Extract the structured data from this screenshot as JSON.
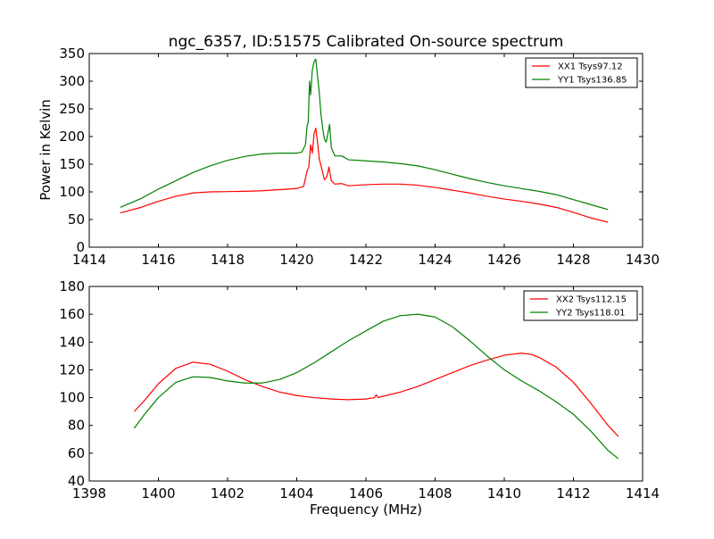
{
  "figure": {
    "title": "ngc_6357, ID:51575 Calibrated On-source spectrum",
    "xlabel": "Frequency (MHz)"
  },
  "chart_data": [
    {
      "type": "line",
      "ylabel": "Power in Kelvin",
      "xlim": [
        1414,
        1430
      ],
      "ylim": [
        0,
        350
      ],
      "xticks": [
        "1414",
        "1416",
        "1418",
        "1420",
        "1422",
        "1424",
        "1426",
        "1428",
        "1430"
      ],
      "yticks": [
        "0",
        "50",
        "100",
        "150",
        "200",
        "250",
        "300",
        "350"
      ],
      "legend_position": "top-right",
      "grid": false,
      "series": [
        {
          "name": "XX1 Tsys97.12",
          "color": "#ff0000",
          "points": [
            [
              1414.9,
              62
            ],
            [
              1415.5,
              72
            ],
            [
              1416,
              83
            ],
            [
              1416.5,
              92
            ],
            [
              1417,
              98
            ],
            [
              1417.5,
              100
            ],
            [
              1418,
              100.5
            ],
            [
              1418.5,
              101
            ],
            [
              1419,
              102
            ],
            [
              1419.5,
              104
            ],
            [
              1420,
              106
            ],
            [
              1420.2,
              110
            ],
            [
              1420.3,
              138
            ],
            [
              1420.35,
              145
            ],
            [
              1420.4,
              185
            ],
            [
              1420.45,
              170
            ],
            [
              1420.5,
              205
            ],
            [
              1420.55,
              215
            ],
            [
              1420.6,
              190
            ],
            [
              1420.65,
              160
            ],
            [
              1420.75,
              135
            ],
            [
              1420.8,
              122
            ],
            [
              1420.85,
              125
            ],
            [
              1420.9,
              135
            ],
            [
              1420.93,
              145
            ],
            [
              1421.0,
              120
            ],
            [
              1421.1,
              114
            ],
            [
              1421.3,
              115
            ],
            [
              1421.5,
              111
            ],
            [
              1422,
              113
            ],
            [
              1422.5,
              114
            ],
            [
              1423,
              114
            ],
            [
              1423.5,
              112
            ],
            [
              1424,
              108
            ],
            [
              1424.5,
              103
            ],
            [
              1425,
              98
            ],
            [
              1425.5,
              92
            ],
            [
              1426,
              87
            ],
            [
              1426.5,
              83
            ],
            [
              1427,
              78
            ],
            [
              1427.5,
              72
            ],
            [
              1428,
              63
            ],
            [
              1428.5,
              53
            ],
            [
              1429,
              45
            ]
          ]
        },
        {
          "name": "YY1 Tsys136.85",
          "color": "#008000",
          "points": [
            [
              1414.9,
              72
            ],
            [
              1415.5,
              88
            ],
            [
              1416,
              105
            ],
            [
              1416.5,
              120
            ],
            [
              1417,
              135
            ],
            [
              1417.5,
              147
            ],
            [
              1418,
              157
            ],
            [
              1418.5,
              164
            ],
            [
              1419,
              168.5
            ],
            [
              1419.5,
              170
            ],
            [
              1420,
              170
            ],
            [
              1420.15,
              172
            ],
            [
              1420.25,
              185
            ],
            [
              1420.3,
              220
            ],
            [
              1420.33,
              225
            ],
            [
              1420.37,
              300
            ],
            [
              1420.4,
              275
            ],
            [
              1420.45,
              320
            ],
            [
              1420.5,
              335
            ],
            [
              1420.55,
              340
            ],
            [
              1420.6,
              310
            ],
            [
              1420.65,
              280
            ],
            [
              1420.7,
              240
            ],
            [
              1420.75,
              215
            ],
            [
              1420.8,
              195
            ],
            [
              1420.85,
              190
            ],
            [
              1420.9,
              205
            ],
            [
              1420.95,
              222
            ],
            [
              1421.0,
              180
            ],
            [
              1421.1,
              165
            ],
            [
              1421.3,
              165
            ],
            [
              1421.5,
              158
            ],
            [
              1422,
              156
            ],
            [
              1422.5,
              154
            ],
            [
              1423,
              151
            ],
            [
              1423.5,
              147
            ],
            [
              1424,
              140
            ],
            [
              1424.5,
              132
            ],
            [
              1425,
              124
            ],
            [
              1425.5,
              117
            ],
            [
              1426,
              111
            ],
            [
              1426.5,
              106
            ],
            [
              1427,
              101
            ],
            [
              1427.5,
              95
            ],
            [
              1428,
              86
            ],
            [
              1428.5,
              77
            ],
            [
              1429,
              68
            ]
          ]
        }
      ]
    },
    {
      "type": "line",
      "ylabel": "",
      "xlim": [
        1398,
        1414
      ],
      "ylim": [
        40,
        180
      ],
      "xticks": [
        "1398",
        "1400",
        "1402",
        "1404",
        "1406",
        "1408",
        "1410",
        "1412",
        "1414"
      ],
      "yticks": [
        "40",
        "60",
        "80",
        "100",
        "120",
        "140",
        "160",
        "180"
      ],
      "legend_position": "top-right",
      "grid": false,
      "series": [
        {
          "name": "XX2 Tsys112.15",
          "color": "#ff0000",
          "points": [
            [
              1399.3,
              90
            ],
            [
              1399.6,
              98
            ],
            [
              1400,
              110
            ],
            [
              1400.5,
              121
            ],
            [
              1401,
              125.5
            ],
            [
              1401.5,
              124
            ],
            [
              1402,
              119
            ],
            [
              1402.5,
              113
            ],
            [
              1403,
              108
            ],
            [
              1403.5,
              104
            ],
            [
              1404,
              101.5
            ],
            [
              1404.5,
              100
            ],
            [
              1405,
              99
            ],
            [
              1405.5,
              98.5
            ],
            [
              1406,
              99
            ],
            [
              1406.25,
              100
            ],
            [
              1406.3,
              102
            ],
            [
              1406.35,
              100
            ],
            [
              1406.5,
              101
            ],
            [
              1407,
              104
            ],
            [
              1407.5,
              108
            ],
            [
              1408,
              113
            ],
            [
              1408.5,
              118
            ],
            [
              1409,
              123
            ],
            [
              1409.5,
              127
            ],
            [
              1410,
              130.5
            ],
            [
              1410.5,
              132
            ],
            [
              1410.8,
              131
            ],
            [
              1411,
              129
            ],
            [
              1411.5,
              122
            ],
            [
              1412,
              111
            ],
            [
              1412.5,
              96
            ],
            [
              1413,
              80
            ],
            [
              1413.3,
              72
            ]
          ]
        },
        {
          "name": "YY2 Tsys118.01",
          "color": "#008000",
          "points": [
            [
              1399.3,
              78
            ],
            [
              1399.6,
              88
            ],
            [
              1400,
              100
            ],
            [
              1400.5,
              111
            ],
            [
              1401,
              115
            ],
            [
              1401.5,
              114.5
            ],
            [
              1402,
              112
            ],
            [
              1402.5,
              110.5
            ],
            [
              1403,
              110.5
            ],
            [
              1403.5,
              113
            ],
            [
              1404,
              118
            ],
            [
              1404.5,
              125
            ],
            [
              1405,
              133
            ],
            [
              1405.5,
              141
            ],
            [
              1406,
              148
            ],
            [
              1406.5,
              155
            ],
            [
              1407,
              159
            ],
            [
              1407.5,
              160
            ],
            [
              1408,
              158
            ],
            [
              1408.5,
              151
            ],
            [
              1409,
              141
            ],
            [
              1409.5,
              130
            ],
            [
              1410,
              120
            ],
            [
              1410.5,
              112
            ],
            [
              1411,
              105
            ],
            [
              1411.5,
              97
            ],
            [
              1412,
              88
            ],
            [
              1412.5,
              76
            ],
            [
              1413,
              62
            ],
            [
              1413.3,
              56
            ]
          ]
        }
      ]
    }
  ]
}
